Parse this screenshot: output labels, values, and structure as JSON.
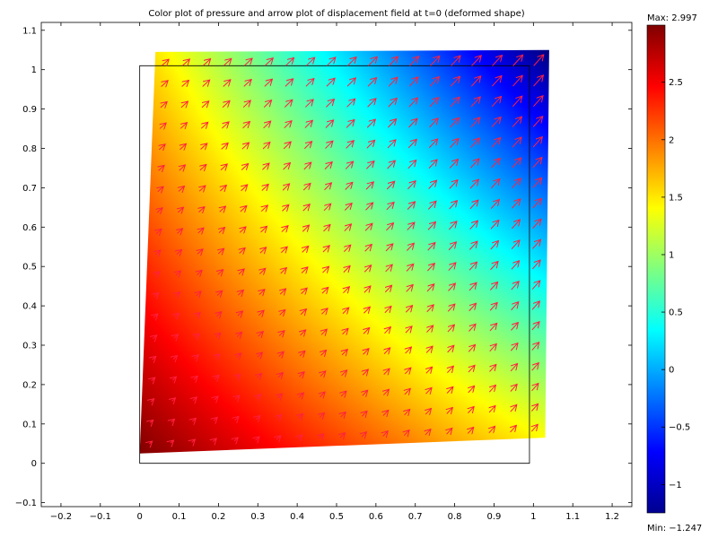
{
  "chart_data": {
    "type": "heatmap",
    "title": "Color plot of pressure  and arrow plot of displacement field at t=0 (deformed shape)",
    "xlabel": "",
    "ylabel": "",
    "xlim": [
      -0.25,
      1.25
    ],
    "ylim": [
      -0.11,
      1.12
    ],
    "x_ticks": [
      -0.2,
      -0.1,
      0,
      0.1,
      0.2,
      0.3,
      0.4,
      0.5,
      0.6,
      0.7,
      0.8,
      0.9,
      1,
      1.1,
      1.2
    ],
    "x_tick_labels": [
      "−0.2",
      "−0.1",
      "0",
      "0.1",
      "0.2",
      "0.3",
      "0.4",
      "0.5",
      "0.6",
      "0.7",
      "0.8",
      "0.9",
      "1",
      "1.1",
      "1.2"
    ],
    "y_ticks": [
      -0.1,
      0,
      0.1,
      0.2,
      0.3,
      0.4,
      0.5,
      0.6,
      0.7,
      0.8,
      0.9,
      1,
      1.1
    ],
    "y_tick_labels": [
      "−0.1",
      "0",
      "0.1",
      "0.2",
      "0.3",
      "0.4",
      "0.5",
      "0.6",
      "0.7",
      "0.8",
      "0.9",
      "1",
      "1.1"
    ],
    "undeformed_domain": [
      [
        0,
        0
      ],
      [
        0.99,
        0
      ],
      [
        0.99,
        1.01
      ],
      [
        0,
        1.01
      ]
    ],
    "deformed_domain": [
      [
        0,
        0.025
      ],
      [
        1.03,
        0.065
      ],
      [
        1.04,
        1.05
      ],
      [
        0.04,
        1.045
      ]
    ],
    "field": {
      "name": "pressure",
      "values_at_corners": {
        "bottom_left": 2.997,
        "bottom_right": 1.4,
        "top_right": -1.247,
        "top_left": 1.5
      },
      "min": -1.247,
      "max": 2.997
    },
    "arrow_field": {
      "name": "displacement",
      "direction": "up-right",
      "color": "#ff2040",
      "grid_cols": 19,
      "grid_rows": 19
    },
    "colorbar": {
      "colormap": "jet",
      "max_label": "Max: 2.997",
      "min_label": "Min: −1.247",
      "ticks": [
        -1,
        -0.5,
        0,
        0.5,
        1,
        1.5,
        2,
        2.5
      ],
      "tick_labels": [
        "−1",
        "−0.5",
        "0",
        "0.5",
        "1",
        "1.5",
        "2",
        "2.5"
      ]
    },
    "grid": false,
    "legend": "none"
  }
}
